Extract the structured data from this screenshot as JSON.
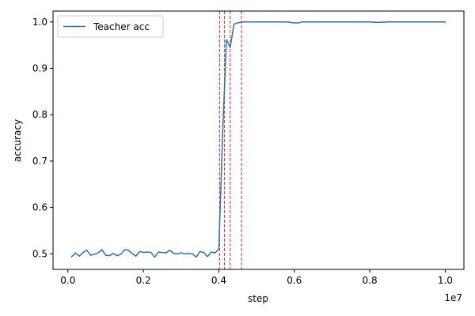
{
  "chart_data": {
    "type": "line",
    "title": "",
    "xlabel": "step",
    "ylabel": "accuracy",
    "x_offset_label": "1e7",
    "xlim": [
      -0.0395,
      1.0495
    ],
    "ylim": [
      0.4665,
      1.0235
    ],
    "grid": false,
    "legend": {
      "position": "top-left",
      "entries": [
        "Teacher acc"
      ]
    },
    "x_ticks": [
      {
        "value": 0.0,
        "label": "0.0"
      },
      {
        "value": 0.2,
        "label": "0.2"
      },
      {
        "value": 0.4,
        "label": "0.4"
      },
      {
        "value": 0.6,
        "label": "0.6"
      },
      {
        "value": 0.8,
        "label": "0.8"
      },
      {
        "value": 1.0,
        "label": "1.0"
      }
    ],
    "y_ticks": [
      {
        "value": 0.5,
        "label": "0.5"
      },
      {
        "value": 0.6,
        "label": "0.6"
      },
      {
        "value": 0.7,
        "label": "0.7"
      },
      {
        "value": 0.8,
        "label": "0.8"
      },
      {
        "value": 0.9,
        "label": "0.9"
      },
      {
        "value": 1.0,
        "label": "1.0"
      }
    ],
    "vlines": [
      {
        "x": 0.402,
        "color": "#d62728",
        "style": "dashed"
      },
      {
        "x": 0.415,
        "color": "#d62728",
        "style": "dashed"
      },
      {
        "x": 0.43,
        "color": "#d62728",
        "style": "dashed"
      },
      {
        "x": 0.46,
        "color": "#d62728",
        "style": "dashed"
      }
    ],
    "series": [
      {
        "name": "Teacher acc",
        "color": "#1f77b4",
        "x": [
          0.01,
          0.02,
          0.03,
          0.04,
          0.05,
          0.06,
          0.07,
          0.08,
          0.09,
          0.1,
          0.11,
          0.12,
          0.13,
          0.14,
          0.15,
          0.16,
          0.17,
          0.18,
          0.19,
          0.2,
          0.21,
          0.22,
          0.23,
          0.24,
          0.25,
          0.26,
          0.27,
          0.28,
          0.29,
          0.3,
          0.31,
          0.32,
          0.33,
          0.34,
          0.35,
          0.36,
          0.37,
          0.38,
          0.39,
          0.4,
          0.41,
          0.42,
          0.43,
          0.44,
          0.45,
          0.46,
          0.48,
          0.5,
          0.55,
          0.58,
          0.6,
          0.61,
          0.62,
          0.65,
          0.7,
          0.75,
          0.8,
          0.82,
          0.85,
          0.9,
          0.95,
          1.0
        ],
        "y": [
          0.494,
          0.502,
          0.495,
          0.503,
          0.508,
          0.497,
          0.499,
          0.502,
          0.509,
          0.497,
          0.496,
          0.501,
          0.496,
          0.499,
          0.509,
          0.508,
          0.501,
          0.495,
          0.505,
          0.503,
          0.504,
          0.503,
          0.493,
          0.504,
          0.503,
          0.502,
          0.508,
          0.501,
          0.5,
          0.502,
          0.5,
          0.501,
          0.5,
          0.493,
          0.505,
          0.503,
          0.494,
          0.504,
          0.502,
          0.511,
          0.76,
          0.962,
          0.945,
          0.995,
          0.998,
          1.0,
          1.0,
          1.0,
          1.0,
          1.0,
          0.998,
          0.998,
          1.0,
          1.0,
          1.0,
          1.0,
          1.0,
          0.999,
          1.0,
          1.0,
          1.0,
          1.0
        ]
      }
    ]
  }
}
